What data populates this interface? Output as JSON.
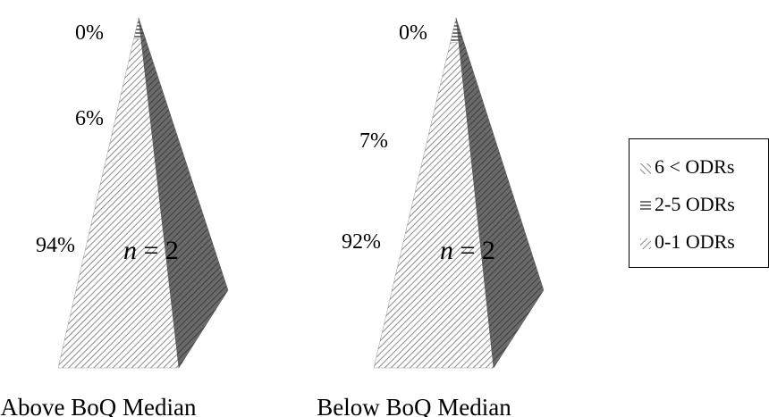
{
  "chart_data": {
    "type": "pyramid",
    "series": [
      {
        "name": "6 < ODRs",
        "pattern": "diagonal-back"
      },
      {
        "name": "2-5 ODRs",
        "pattern": "horizontal"
      },
      {
        "name": "0-1 ODRs",
        "pattern": "diagonal"
      }
    ],
    "pyramids": [
      {
        "category": "Above BoQ Median",
        "n_label": "n = 2",
        "values": {
          "6 < ODRs": 0,
          "2-5 ODRs": 6,
          "0-1 ODRs": 94
        },
        "labels": {
          "6 < ODRs": "0%",
          "2-5 ODRs": "6%",
          "0-1 ODRs": "94%"
        }
      },
      {
        "category": "Below BoQ Median",
        "n_label": "n = 2",
        "values": {
          "6 < ODRs": 0,
          "2-5 ODRs": 7,
          "0-1 ODRs": 92
        },
        "labels": {
          "6 < ODRs": "0%",
          "2-5 ODRs": "7%",
          "0-1 ODRs": "92%"
        }
      }
    ],
    "legend": {
      "position": "right",
      "items": [
        "6 < ODRs",
        "2-5 ODRs",
        "0-1 ODRs"
      ]
    }
  }
}
